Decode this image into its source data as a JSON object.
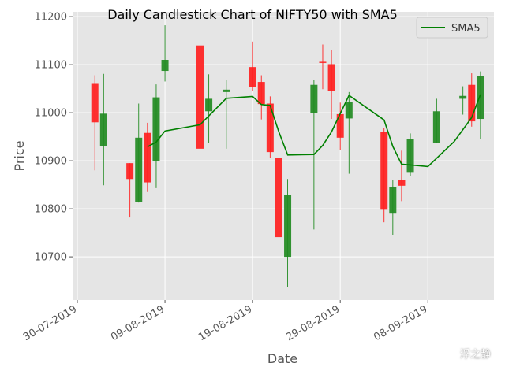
{
  "chart_data": {
    "type": "candlestick",
    "title": "Daily Candlestick Chart of NIFTY50 with SMA5",
    "xlabel": "Date",
    "ylabel": "Price",
    "ylim": [
      10610,
      11210
    ],
    "xlim": [
      "2019-07-30",
      "2019-09-15"
    ],
    "yticks": [
      10700,
      10800,
      10900,
      11000,
      11100,
      11200
    ],
    "xticks": [
      "2019-07-30",
      "2019-08-09",
      "2019-08-19",
      "2019-08-29",
      "2019-09-08"
    ],
    "xtick_labels": [
      "30-07-2019",
      "09-08-2019",
      "19-08-2019",
      "29-08-2019",
      "08-09-2019"
    ],
    "grid": true,
    "legend": {
      "position": "top-right",
      "entries": [
        "SMA5"
      ]
    },
    "up_color": "#228b22",
    "down_color": "#ff2020",
    "sma_color": "#008000",
    "candles": [
      {
        "date": "2019-08-01",
        "open": 11060,
        "high": 11078,
        "low": 10880,
        "close": 10980
      },
      {
        "date": "2019-08-02",
        "open": 10930,
        "high": 11081,
        "low": 10849,
        "close": 10998
      },
      {
        "date": "2019-08-05",
        "open": 10895,
        "high": 10895,
        "low": 10782,
        "close": 10862
      },
      {
        "date": "2019-08-06",
        "open": 10814,
        "high": 11019,
        "low": 10813,
        "close": 10948
      },
      {
        "date": "2019-08-07",
        "open": 10958,
        "high": 10979,
        "low": 10835,
        "close": 10855
      },
      {
        "date": "2019-08-08",
        "open": 10899,
        "high": 11059,
        "low": 10843,
        "close": 11032
      },
      {
        "date": "2019-08-09",
        "open": 11087,
        "high": 11182,
        "low": 11065,
        "close": 11110
      },
      {
        "date": "2019-08-13",
        "open": 11140,
        "high": 11145,
        "low": 10901,
        "close": 10925
      },
      {
        "date": "2019-08-14",
        "open": 11003,
        "high": 11080,
        "low": 10937,
        "close": 11029
      },
      {
        "date": "2019-08-16",
        "open": 11043,
        "high": 11069,
        "low": 10925,
        "close": 11048
      },
      {
        "date": "2019-08-19",
        "open": 11095,
        "high": 11148,
        "low": 11046,
        "close": 11053
      },
      {
        "date": "2019-08-20",
        "open": 11064,
        "high": 11078,
        "low": 10986,
        "close": 11018
      },
      {
        "date": "2019-08-21",
        "open": 11019,
        "high": 11034,
        "low": 10906,
        "close": 10918
      },
      {
        "date": "2019-08-22",
        "open": 10906,
        "high": 10909,
        "low": 10717,
        "close": 10741
      },
      {
        "date": "2019-08-23",
        "open": 10700,
        "high": 10862,
        "low": 10637,
        "close": 10829
      },
      {
        "date": "2019-08-26",
        "open": 11000,
        "high": 11069,
        "low": 10757,
        "close": 11058
      },
      {
        "date": "2019-08-27",
        "open": 11106,
        "high": 11142,
        "low": 11049,
        "close": 11105
      },
      {
        "date": "2019-08-28",
        "open": 11101,
        "high": 11130,
        "low": 10987,
        "close": 11046
      },
      {
        "date": "2019-08-29",
        "open": 10997,
        "high": 11021,
        "low": 10922,
        "close": 10948
      },
      {
        "date": "2019-08-30",
        "open": 10988,
        "high": 11043,
        "low": 10873,
        "close": 11023
      },
      {
        "date": "2019-09-03",
        "open": 10960,
        "high": 10968,
        "low": 10772,
        "close": 10798
      },
      {
        "date": "2019-09-04",
        "open": 10790,
        "high": 10860,
        "low": 10746,
        "close": 10845
      },
      {
        "date": "2019-09-05",
        "open": 10860,
        "high": 10921,
        "low": 10816,
        "close": 10848
      },
      {
        "date": "2019-09-06",
        "open": 10875,
        "high": 10957,
        "low": 10868,
        "close": 10946
      },
      {
        "date": "2019-09-09",
        "open": 10937,
        "high": 11029,
        "low": 10937,
        "close": 11003
      },
      {
        "date": "2019-09-12",
        "open": 11029,
        "high": 11055,
        "low": 10996,
        "close": 11035
      },
      {
        "date": "2019-09-13",
        "open": 11058,
        "high": 11082,
        "low": 10971,
        "close": 10982
      },
      {
        "date": "2019-09-14",
        "open": 10987,
        "high": 11086,
        "low": 10945,
        "close": 11076
      }
    ],
    "sma5": [
      {
        "date": "2019-08-07",
        "value": 10929
      },
      {
        "date": "2019-08-08",
        "value": 10939
      },
      {
        "date": "2019-08-09",
        "value": 10962
      },
      {
        "date": "2019-08-13",
        "value": 10975
      },
      {
        "date": "2019-08-16",
        "value": 11030
      },
      {
        "date": "2019-08-19",
        "value": 11034
      },
      {
        "date": "2019-08-20",
        "value": 11017
      },
      {
        "date": "2019-08-21",
        "value": 11015
      },
      {
        "date": "2019-08-22",
        "value": 10960
      },
      {
        "date": "2019-08-23",
        "value": 10912
      },
      {
        "date": "2019-08-26",
        "value": 10913
      },
      {
        "date": "2019-08-27",
        "value": 10932
      },
      {
        "date": "2019-08-28",
        "value": 10960
      },
      {
        "date": "2019-08-30",
        "value": 11036
      },
      {
        "date": "2019-09-03",
        "value": 10985
      },
      {
        "date": "2019-09-04",
        "value": 10930
      },
      {
        "date": "2019-09-05",
        "value": 10893
      },
      {
        "date": "2019-09-08",
        "value": 10888
      },
      {
        "date": "2019-09-11",
        "value": 10940
      },
      {
        "date": "2019-09-13",
        "value": 10990
      },
      {
        "date": "2019-09-14",
        "value": 11038
      }
    ]
  },
  "watermark": {
    "text": "浮之静",
    "icon": "wechat-icon"
  }
}
